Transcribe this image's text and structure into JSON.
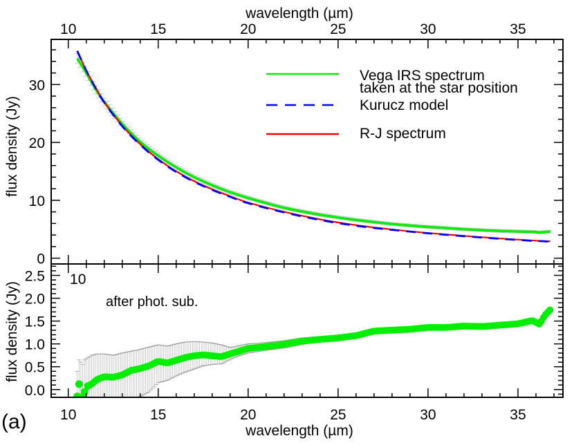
{
  "figure": {
    "panel_label": "(a)",
    "top_axis_title": "wavelength (µm)",
    "bottom_axis_title": "wavelength (µm)",
    "upper_ylabel": "flux density (Jy)",
    "lower_ylabel": "flux density (Jy)",
    "lower_annotation": "after phot. sub.",
    "legend": [
      {
        "label_line1": "Vega IRS spectrum",
        "label_line2": "taken at the star position",
        "color": "#00ee00",
        "style": "solid"
      },
      {
        "label_line1": "Kurucz model",
        "label_line2": "",
        "color": "#0000ee",
        "style": "dashed"
      },
      {
        "label_line1": "R-J spectrum",
        "label_line2": "",
        "color": "#ee0000",
        "style": "solid"
      }
    ],
    "colors": {
      "vega": "#00ee00",
      "kurucz": "#0000ee",
      "rj": "#ee0000",
      "errorbar": "#9a9a9a",
      "axis": "#000000"
    }
  },
  "chart_data": [
    {
      "type": "line",
      "title": "",
      "xlabel": "wavelength (µm)",
      "ylabel": "flux density (Jy)",
      "xlim": [
        9.05,
        37.5
      ],
      "ylim": [
        -1.0,
        37.8
      ],
      "xticks": [
        10,
        15,
        20,
        25,
        30,
        35
      ],
      "yticks": [
        0,
        10,
        20,
        30
      ],
      "grid": false,
      "legend_position": "upper right",
      "x": [
        10.5,
        11,
        11.5,
        12,
        13,
        14,
        15,
        16,
        17,
        18,
        19,
        20,
        22,
        24,
        26,
        28,
        30,
        32,
        34,
        35.8,
        36.2,
        36.8
      ],
      "series": [
        {
          "name": "Vega IRS spectrum taken at the star position",
          "values": [
            34.5,
            32.0,
            29.3,
            27.0,
            23.2,
            20.1,
            17.7,
            15.7,
            14.0,
            12.6,
            11.4,
            10.4,
            8.7,
            7.5,
            6.6,
            5.9,
            5.4,
            5.0,
            4.7,
            4.55,
            4.45,
            4.6
          ]
        },
        {
          "name": "Kurucz model",
          "values": [
            35.8,
            32.4,
            29.5,
            26.9,
            22.8,
            19.6,
            17.0,
            14.9,
            13.2,
            11.8,
            10.6,
            9.5,
            7.9,
            6.6,
            5.6,
            4.9,
            4.3,
            3.8,
            3.35,
            3.0,
            2.95,
            2.85
          ]
        },
        {
          "name": "R-J spectrum",
          "values": [
            35.8,
            32.4,
            29.6,
            27.0,
            22.9,
            19.7,
            17.1,
            15.0,
            13.3,
            11.9,
            10.7,
            9.6,
            8.0,
            6.7,
            5.7,
            4.95,
            4.35,
            3.85,
            3.4,
            3.05,
            3.0,
            2.9
          ]
        }
      ]
    },
    {
      "type": "scatter",
      "title": "",
      "annotation": "after phot. sub.",
      "xlabel": "wavelength (µm)",
      "ylabel": "flux density (Jy)",
      "xlim": [
        9.05,
        37.5
      ],
      "ylim": [
        -0.17,
        2.75
      ],
      "xticks": [
        10,
        15,
        20,
        25,
        30,
        35
      ],
      "yticks": [
        0.0,
        0.5,
        1.0,
        1.5,
        2.0,
        2.5
      ],
      "grid": false,
      "series": [
        {
          "name": "after phot. sub.",
          "x": [
            10.5,
            10.6,
            10.8,
            10.9,
            11.1,
            11.3,
            11.6,
            12.0,
            12.5,
            13.0,
            13.5,
            14.0,
            14.5,
            15.0,
            15.5,
            16.0,
            16.5,
            17.0,
            17.5,
            18.0,
            18.5,
            19.0,
            19.5,
            20.0,
            21.0,
            22.0,
            23.0,
            24.0,
            25.0,
            26.0,
            27.0,
            28.0,
            29.0,
            30.0,
            31.0,
            32.0,
            33.0,
            34.0,
            35.0,
            35.8,
            36.2,
            36.5,
            36.8
          ],
          "values": [
            -0.15,
            0.12,
            -0.17,
            -0.05,
            0.08,
            0.12,
            0.22,
            0.28,
            0.27,
            0.32,
            0.42,
            0.46,
            0.52,
            0.62,
            0.58,
            0.64,
            0.7,
            0.74,
            0.76,
            0.74,
            0.72,
            0.78,
            0.84,
            0.9,
            0.94,
            0.99,
            1.06,
            1.1,
            1.13,
            1.18,
            1.28,
            1.3,
            1.32,
            1.36,
            1.36,
            1.39,
            1.38,
            1.41,
            1.44,
            1.51,
            1.43,
            1.63,
            1.75
          ],
          "error_low": [
            -0.5,
            -0.5,
            -0.5,
            -0.5,
            -0.5,
            -0.5,
            -0.5,
            -0.45,
            -0.4,
            -0.35,
            -0.25,
            -0.15,
            -0.05,
            0.15,
            0.2,
            0.3,
            0.38,
            0.45,
            0.52,
            0.55,
            0.56,
            0.66,
            0.74,
            0.8,
            0.86,
            0.91,
            0.99,
            1.04,
            1.07,
            1.12,
            1.23,
            1.26,
            1.28,
            1.33,
            1.33,
            1.36,
            1.35,
            1.38,
            1.41,
            1.49,
            1.41,
            1.61,
            1.73
          ],
          "error_high": [
            0.4,
            0.65,
            0.55,
            0.65,
            0.7,
            0.75,
            0.78,
            0.78,
            0.75,
            0.8,
            0.84,
            0.88,
            0.93,
            0.98,
            0.95,
            1.0,
            1.04,
            1.05,
            1.04,
            1.02,
            0.98,
            0.92,
            0.96,
            1.0,
            1.03,
            1.07,
            1.13,
            1.16,
            1.19,
            1.24,
            1.33,
            1.34,
            1.36,
            1.39,
            1.39,
            1.42,
            1.41,
            1.44,
            1.47,
            1.53,
            1.45,
            1.65,
            1.77
          ]
        }
      ]
    }
  ]
}
